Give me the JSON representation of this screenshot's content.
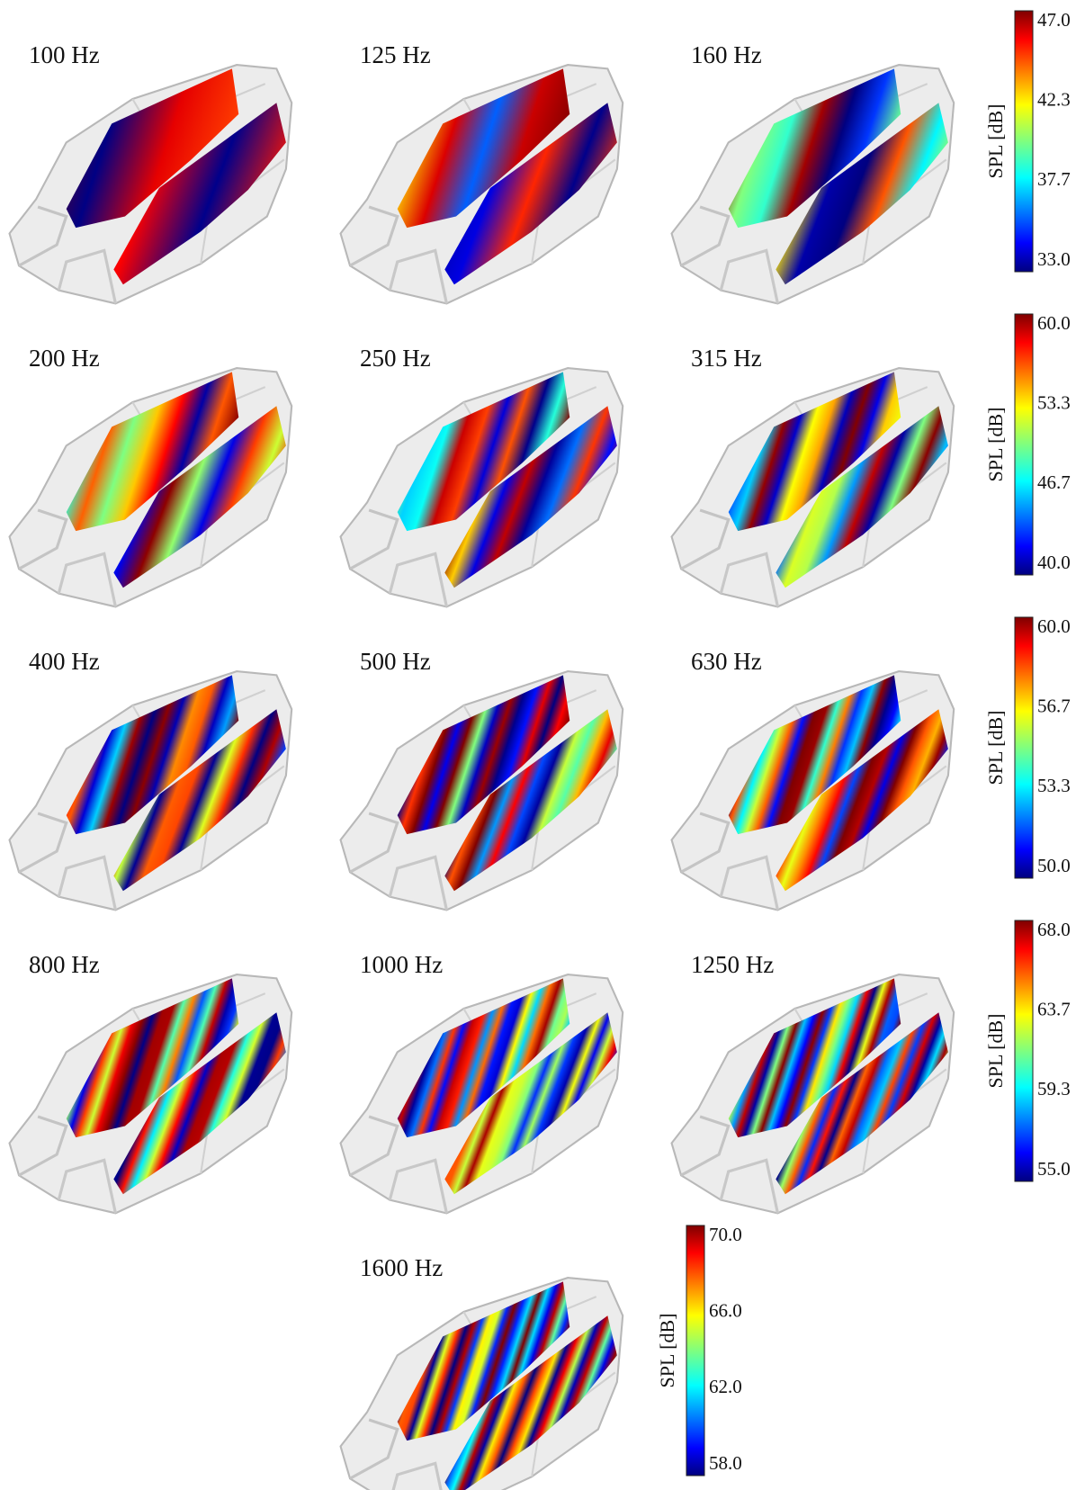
{
  "panels": [
    {
      "label": "100 Hz"
    },
    {
      "label": "125 Hz"
    },
    {
      "label": "160 Hz"
    },
    {
      "label": "200 Hz"
    },
    {
      "label": "250 Hz"
    },
    {
      "label": "315 Hz"
    },
    {
      "label": "400 Hz"
    },
    {
      "label": "500 Hz"
    },
    {
      "label": "630 Hz"
    },
    {
      "label": "800 Hz"
    },
    {
      "label": "1000 Hz"
    },
    {
      "label": "1250 Hz"
    },
    {
      "label": "1600 Hz"
    }
  ],
  "colorbars": [
    {
      "label": "SPL [dB]",
      "ticks": [
        "47.0",
        "42.3",
        "37.7",
        "33.0"
      ]
    },
    {
      "label": "SPL [dB]",
      "ticks": [
        "60.0",
        "53.3",
        "46.7",
        "40.0"
      ]
    },
    {
      "label": "SPL [dB]",
      "ticks": [
        "60.0",
        "56.7",
        "53.3",
        "50.0"
      ]
    },
    {
      "label": "SPL [dB]",
      "ticks": [
        "68.0",
        "63.7",
        "59.3",
        "55.0"
      ]
    },
    {
      "label": "SPL [dB]",
      "ticks": [
        "70.0",
        "66.0",
        "62.0",
        "58.0"
      ]
    }
  ]
}
